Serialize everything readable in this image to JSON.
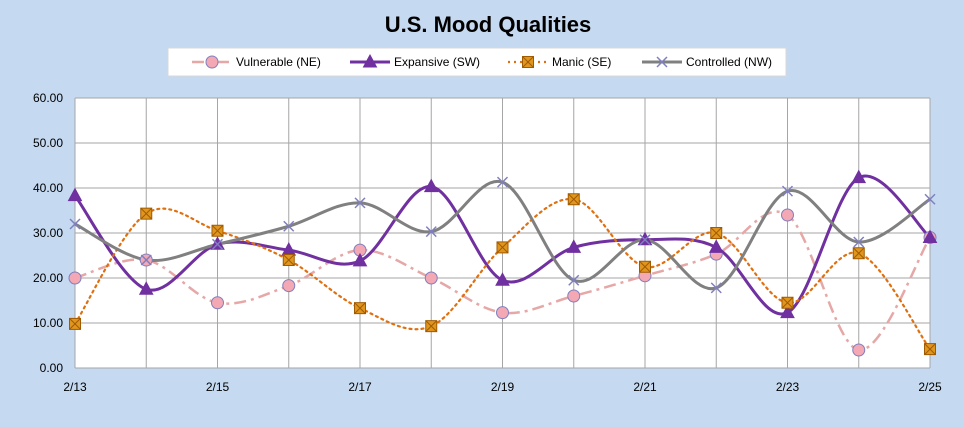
{
  "chart_data": {
    "type": "line",
    "title": "U.S.  Mood Qualities",
    "xlabel": "",
    "ylabel": "",
    "ylim": [
      0,
      60
    ],
    "y_ticks": [
      "0.00",
      "10.00",
      "20.00",
      "30.00",
      "40.00",
      "50.00",
      "60.00"
    ],
    "y_tick_values": [
      0,
      10,
      20,
      30,
      40,
      50,
      60
    ],
    "x": [
      "2/13",
      "2/14",
      "2/15",
      "2/16",
      "2/17",
      "2/18",
      "2/19",
      "2/20",
      "2/21",
      "2/22",
      "2/23",
      "2/24",
      "2/25"
    ],
    "x_tick_labels": [
      "2/13",
      "2/15",
      "2/17",
      "2/19",
      "2/21",
      "2/23",
      "2/25"
    ],
    "grid": true,
    "legend": "top",
    "smooth": true,
    "series": [
      {
        "name": "Vulnerable (NE)",
        "color": "#e6a7a7",
        "marker": "circle",
        "marker_fill": "#f4a8b4",
        "marker_stroke": "#7f7fbf",
        "dash": "dash-dot",
        "values": [
          20.0,
          24.0,
          14.5,
          18.3,
          26.2,
          20.0,
          12.3,
          16.0,
          20.5,
          25.3,
          34.0,
          4.0,
          29.0
        ]
      },
      {
        "name": "Expansive (SW)",
        "color": "#7030a0",
        "marker": "triangle",
        "marker_fill": "#7030a0",
        "marker_stroke": "#7030a0",
        "dash": "solid",
        "values": [
          38.3,
          17.5,
          27.5,
          26.2,
          23.8,
          40.3,
          19.5,
          26.8,
          28.5,
          26.8,
          12.3,
          42.3,
          29.0
        ]
      },
      {
        "name": "Manic (SE)",
        "color": "#e0700f",
        "marker": "square-x",
        "marker_fill": "#e0961e",
        "marker_stroke": "#a05a00",
        "dash": "dotted",
        "values": [
          9.8,
          34.3,
          30.5,
          24.0,
          13.3,
          9.3,
          26.8,
          37.5,
          22.5,
          30.0,
          14.5,
          25.5,
          4.2
        ]
      },
      {
        "name": "Controlled (NW)",
        "color": "#808080",
        "marker": "x",
        "marker_fill": "none",
        "marker_stroke": "#7f7fbf",
        "dash": "solid",
        "values": [
          32.0,
          24.0,
          27.5,
          31.5,
          36.7,
          30.3,
          41.3,
          19.5,
          28.5,
          17.8,
          39.3,
          28.0,
          37.5
        ]
      }
    ]
  }
}
